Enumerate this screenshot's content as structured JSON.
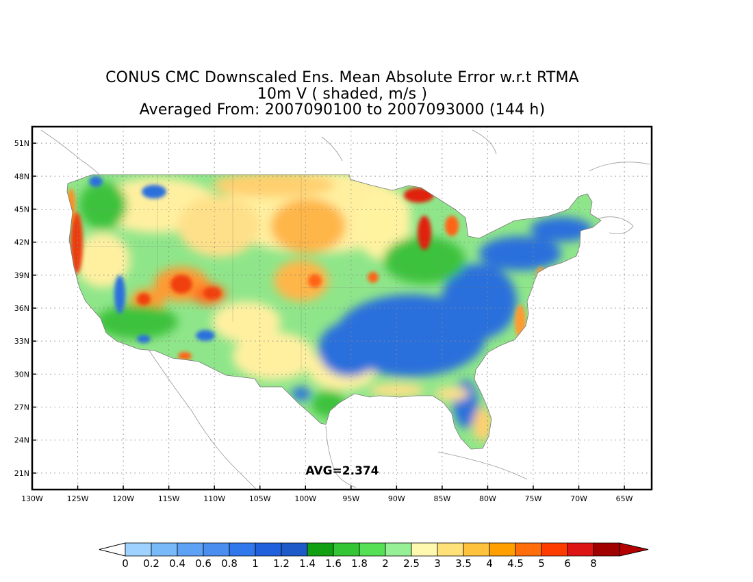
{
  "title": {
    "line1": "CONUS CMC Downscaled Ens. Mean Absolute Error w.r.t RTMA",
    "line2": "10m V ( shaded, m/s )",
    "line3": "Averaged From: 2007090100 to 2007093000 (144 h)"
  },
  "average_label": "AVG=2.374",
  "map": {
    "lon_range": [
      -130,
      -62
    ],
    "lat_range": [
      19.5,
      52.5
    ],
    "lon_ticks": [
      "130W",
      "125W",
      "120W",
      "115W",
      "110W",
      "105W",
      "100W",
      "95W",
      "90W",
      "85W",
      "80W",
      "75W",
      "70W",
      "65W"
    ],
    "lat_ticks": [
      "21N",
      "24N",
      "27N",
      "30N",
      "33N",
      "36N",
      "39N",
      "42N",
      "45N",
      "48N",
      "51N"
    ],
    "grid": true,
    "grid_style": "dotted"
  },
  "colorbar": {
    "labels": [
      "0",
      "0.2",
      "0.4",
      "0.6",
      "0.8",
      "1",
      "1.2",
      "1.4",
      "1.6",
      "1.8",
      "2",
      "2.5",
      "3",
      "3.5",
      "4",
      "4.5",
      "5",
      "6",
      "8"
    ],
    "colors": [
      "#9fd2ff",
      "#78b9fa",
      "#5ea2f5",
      "#4a8ff0",
      "#3078eb",
      "#2060dc",
      "#1e5ac8",
      "#11a011",
      "#33c533",
      "#55e055",
      "#96f096",
      "#fff9b0",
      "#ffe17a",
      "#ffc23c",
      "#ffa000",
      "#ff6e0a",
      "#ff3c00",
      "#dc1414",
      "#a00000"
    ],
    "under_color": "#ffffff",
    "over_color": "#b40000"
  },
  "palette": {
    "blue": "#2a6fdc",
    "green": "#3cc23c",
    "lightgreen": "#96ee8a",
    "yellow": "#fff3a0",
    "orange": "#ffb64a",
    "red": "#f04010"
  }
}
